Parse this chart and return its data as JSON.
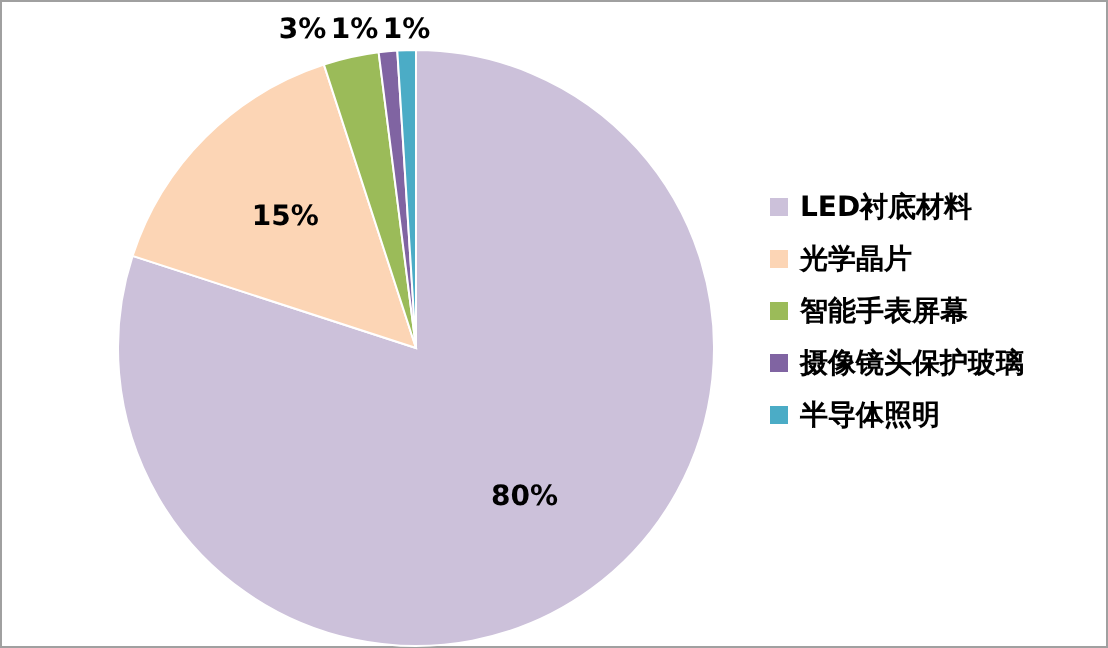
{
  "chart_data": {
    "type": "pie",
    "categories": [
      "LED衬底材料",
      "光学晶片",
      "智能手表屏幕",
      "摄像镜头保护玻璃",
      "半导体照明"
    ],
    "values": [
      80,
      15,
      3,
      1,
      1
    ],
    "value_labels": [
      "80%",
      "15%",
      "3%",
      "1%",
      "1%"
    ],
    "colors": [
      "#ccc1da",
      "#fcd5b5",
      "#9bbb59",
      "#8064a2",
      "#4bacc6"
    ],
    "legend": "right"
  }
}
